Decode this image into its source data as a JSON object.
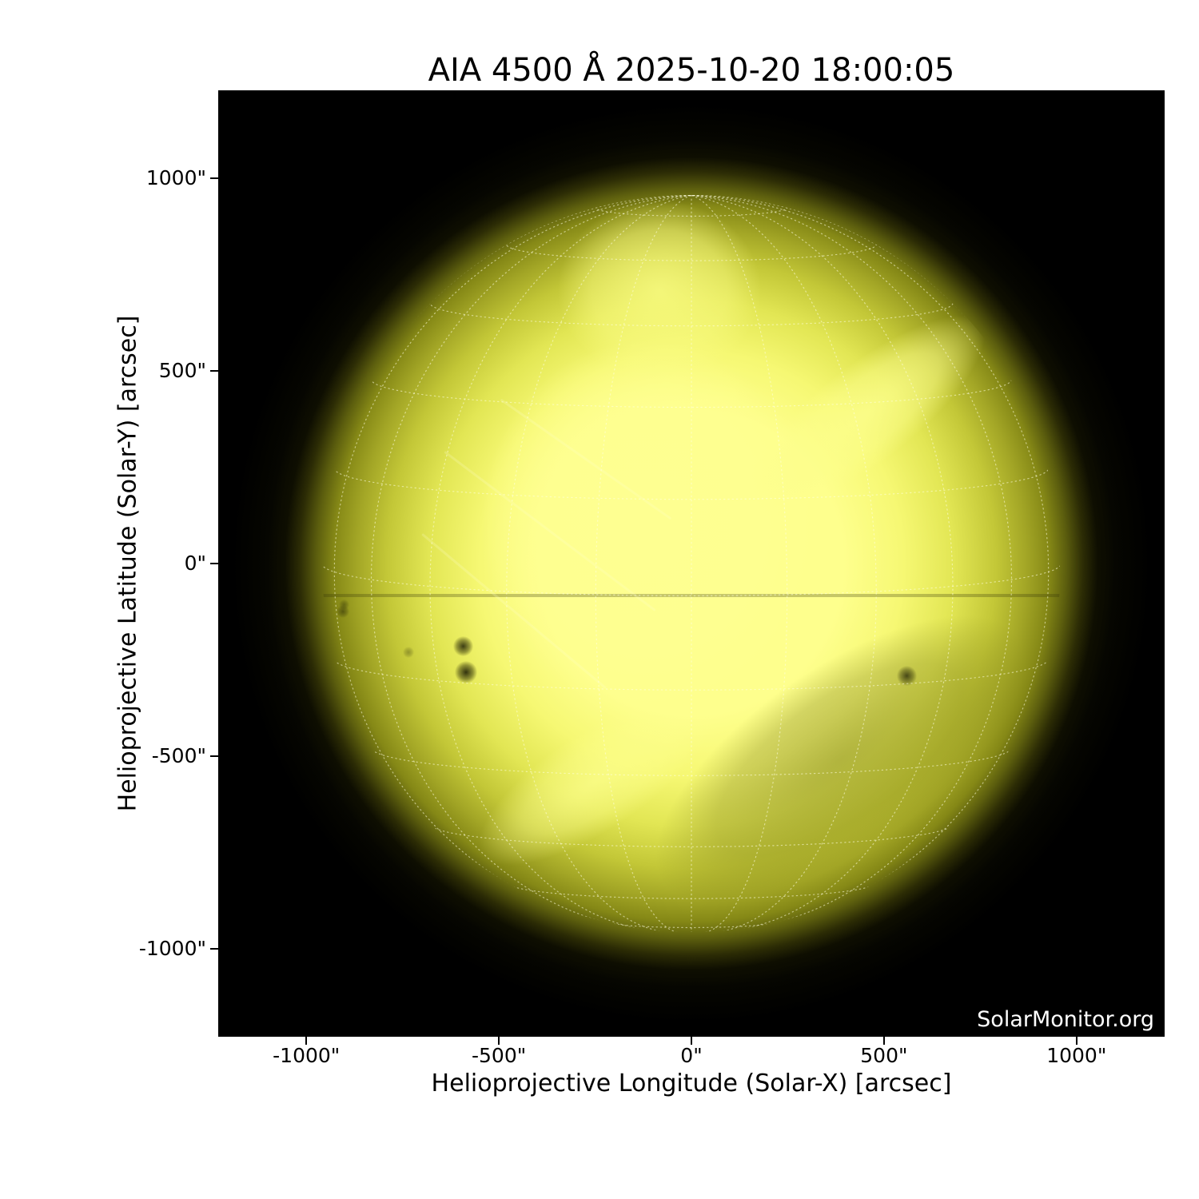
{
  "page": {
    "background": "#ffffff"
  },
  "chart_data": {
    "type": "heatmap",
    "description": "SDO/AIA 4500 Å full-disk solar continuum image in yellow colormap with dotted heliographic coordinate grid overlay, on black sky background",
    "title": "AIA 4500 Å 2025-10-20 18:00:05",
    "xlabel": "Helioprojective Longitude (Solar-X) [arcsec]",
    "ylabel": "Helioprojective Latitude (Solar-Y) [arcsec]",
    "xlim": [
      -1228.8,
      1228.8
    ],
    "ylim": [
      -1228.8,
      1228.8
    ],
    "x_ticks": [
      {
        "value": -1000,
        "label": "-1000\""
      },
      {
        "value": -500,
        "label": "-500\""
      },
      {
        "value": 0,
        "label": "0\""
      },
      {
        "value": 500,
        "label": "500\""
      },
      {
        "value": 1000,
        "label": "1000\""
      }
    ],
    "y_ticks": [
      {
        "value": 1000,
        "label": "1000\""
      },
      {
        "value": 500,
        "label": "500\""
      },
      {
        "value": 0,
        "label": "0\""
      },
      {
        "value": -500,
        "label": "-500\""
      },
      {
        "value": -1000,
        "label": "-1000\""
      }
    ],
    "grid": "heliographic dotted grid, 15 degree spacing",
    "legend": "none",
    "watermark": "SolarMonitor.org",
    "solar_disk": {
      "center_arcsec": [
        0,
        0
      ],
      "radius_arcsec": 960,
      "b0_tilt_deg": 5,
      "grid_spacing_deg": 15
    },
    "sunspots_arcsec": [
      {
        "x": -592,
        "y": -214,
        "diameter_arcsec": 52,
        "opacity": 0.8
      },
      {
        "x": -585,
        "y": -282,
        "diameter_arcsec": 58,
        "opacity": 0.85
      },
      {
        "x": 560,
        "y": -292,
        "diameter_arcsec": 52,
        "opacity": 0.7
      },
      {
        "x": -905,
        "y": -125,
        "diameter_arcsec": 34,
        "opacity": 0.45
      },
      {
        "x": -902,
        "y": -107,
        "diameter_arcsec": 26,
        "opacity": 0.35
      },
      {
        "x": -735,
        "y": -230,
        "diameter_arcsec": 30,
        "opacity": 0.3
      }
    ],
    "colors": {
      "sky_background": "#000000",
      "disk_core": "#feff8d",
      "disk_bright": "#ffff96",
      "disk_mid": "#dde14c",
      "disk_limb": "#9a9d22",
      "disk_rim": "#4a4b0c",
      "grid_line": "#ffffe0",
      "axis_text": "#000000",
      "watermark_text": "#ffffff"
    }
  }
}
